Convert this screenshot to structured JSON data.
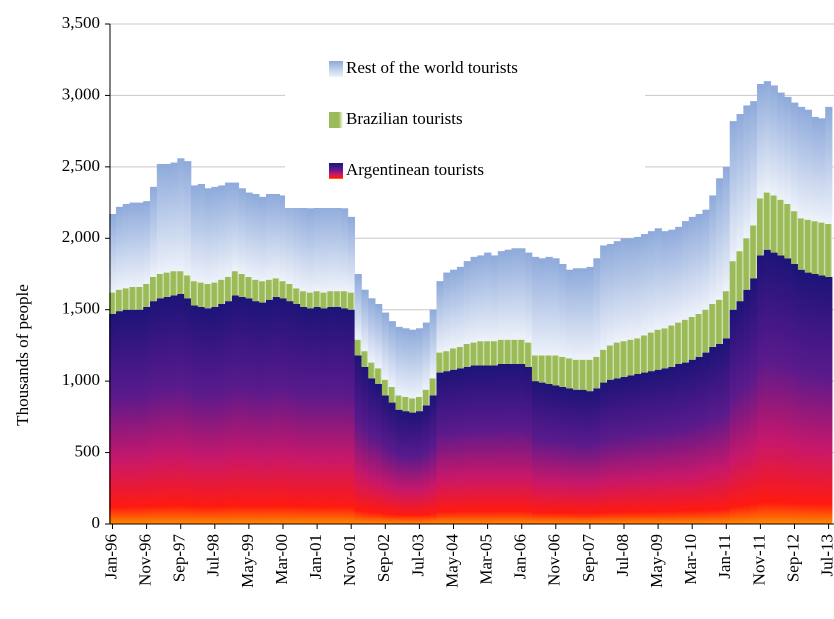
{
  "chart_data": {
    "type": "stacked-bar",
    "y_label": "Thousands of people",
    "categories": [
      "Jan-96",
      null,
      null,
      null,
      null,
      "Nov-96",
      null,
      null,
      null,
      null,
      "Sep-97",
      null,
      null,
      null,
      null,
      "Jul-98",
      null,
      null,
      null,
      null,
      "May-99",
      null,
      null,
      null,
      null,
      "Mar-00",
      null,
      null,
      null,
      null,
      "Jan-01",
      null,
      null,
      null,
      null,
      "Nov-01",
      null,
      null,
      null,
      null,
      "Sep-02",
      null,
      null,
      null,
      null,
      "Jul-03",
      null,
      null,
      null,
      null,
      "May-04",
      null,
      null,
      null,
      null,
      "Mar-05",
      null,
      null,
      null,
      null,
      "Jan-06",
      null,
      null,
      null,
      null,
      "Nov-06",
      null,
      null,
      null,
      null,
      "Sep-07",
      null,
      null,
      null,
      null,
      "Jul-08",
      null,
      null,
      null,
      null,
      "May-09",
      null,
      null,
      null,
      null,
      "Mar-10",
      null,
      null,
      null,
      null,
      "Jan-11",
      null,
      null,
      null,
      null,
      "Nov-11",
      null,
      null,
      null,
      null,
      "Sep-12",
      null,
      null,
      null,
      null,
      "Jul-13"
    ],
    "series": [
      {
        "name": "Argentinean tourists",
        "color": "#1c1478",
        "values": [
          1470,
          1490,
          1500,
          1500,
          1500,
          1520,
          1560,
          1580,
          1590,
          1600,
          1610,
          1580,
          1530,
          1520,
          1510,
          1520,
          1540,
          1560,
          1600,
          1590,
          1580,
          1560,
          1550,
          1570,
          1590,
          1580,
          1560,
          1540,
          1520,
          1510,
          1520,
          1510,
          1520,
          1520,
          1510,
          1500,
          1180,
          1100,
          1020,
          980,
          900,
          850,
          800,
          790,
          780,
          790,
          830,
          900,
          1060,
          1070,
          1080,
          1090,
          1100,
          1110,
          1110,
          1110,
          1110,
          1120,
          1120,
          1120,
          1120,
          1100,
          1000,
          990,
          980,
          970,
          960,
          950,
          940,
          940,
          930,
          950,
          990,
          1010,
          1020,
          1030,
          1040,
          1050,
          1060,
          1070,
          1080,
          1090,
          1100,
          1120,
          1130,
          1150,
          1170,
          1200,
          1240,
          1260,
          1300,
          1500,
          1560,
          1640,
          1720,
          1880,
          1920,
          1900,
          1880,
          1860,
          1820,
          1780,
          1760,
          1750,
          1740,
          1730
        ]
      },
      {
        "name": "Brazilian tourists",
        "color": "#9bbb59",
        "values": [
          150,
          150,
          150,
          160,
          160,
          160,
          170,
          170,
          170,
          170,
          160,
          160,
          170,
          170,
          170,
          170,
          170,
          170,
          170,
          160,
          150,
          150,
          150,
          140,
          130,
          120,
          120,
          110,
          110,
          110,
          110,
          110,
          110,
          110,
          120,
          120,
          110,
          110,
          110,
          110,
          110,
          110,
          100,
          100,
          100,
          100,
          110,
          120,
          140,
          140,
          150,
          150,
          160,
          160,
          170,
          170,
          170,
          170,
          170,
          170,
          170,
          170,
          180,
          190,
          200,
          210,
          210,
          210,
          210,
          210,
          220,
          220,
          230,
          240,
          250,
          250,
          250,
          250,
          260,
          270,
          280,
          280,
          290,
          290,
          300,
          300,
          300,
          300,
          300,
          310,
          330,
          340,
          350,
          360,
          370,
          400,
          400,
          400,
          390,
          380,
          370,
          360,
          370,
          370,
          370,
          370
        ]
      },
      {
        "name": "Rest of the world  tourists",
        "color": "#8eaadb",
        "values": [
          550,
          580,
          590,
          590,
          590,
          580,
          630,
          770,
          760,
          760,
          790,
          800,
          670,
          690,
          670,
          670,
          660,
          660,
          620,
          600,
          590,
          600,
          590,
          600,
          590,
          600,
          600,
          610,
          600,
          590,
          600,
          620,
          610,
          610,
          580,
          530,
          460,
          430,
          450,
          450,
          470,
          460,
          480,
          480,
          480,
          480,
          470,
          480,
          500,
          550,
          550,
          560,
          580,
          600,
          600,
          620,
          600,
          620,
          630,
          640,
          640,
          630,
          690,
          680,
          690,
          680,
          650,
          620,
          640,
          640,
          650,
          690,
          730,
          710,
          710,
          720,
          710,
          710,
          710,
          710,
          710,
          680,
          670,
          670,
          690,
          700,
          700,
          700,
          760,
          850,
          870,
          980,
          960,
          930,
          870,
          800,
          780,
          770,
          750,
          750,
          760,
          780,
          770,
          730,
          730,
          820
        ]
      }
    ],
    "ylim": [
      0,
      3500
    ],
    "yticks": [
      0,
      500,
      {
        "value": 1000,
        "label": "1,000"
      },
      {
        "value": 1500,
        "label": "1,500"
      },
      {
        "value": 2000,
        "label": "2,000"
      },
      {
        "value": 2500,
        "label": "2,500"
      },
      {
        "value": 3000,
        "label": "3,000"
      },
      {
        "value": 3500,
        "label": "3,500"
      }
    ],
    "grid": true
  }
}
